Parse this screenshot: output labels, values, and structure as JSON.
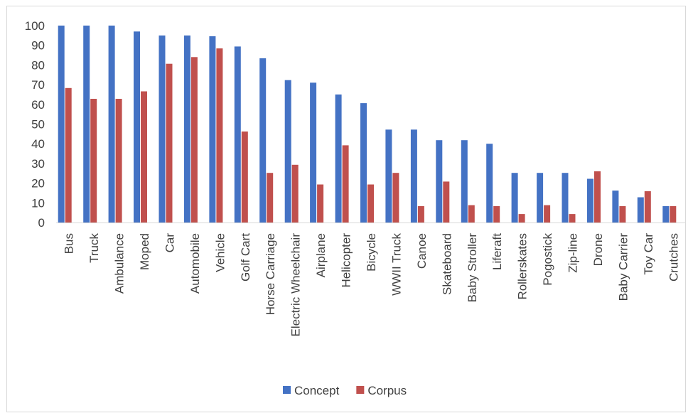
{
  "chart_data": {
    "type": "bar",
    "title": "",
    "xlabel": "",
    "ylabel": "",
    "ylim": [
      0,
      100
    ],
    "yticks": [
      0,
      10,
      20,
      30,
      40,
      50,
      60,
      70,
      80,
      90,
      100
    ],
    "grid": false,
    "legend_position": "bottom",
    "categories": [
      "Bus",
      "Truck",
      "Ambulance",
      "Moped",
      "Car",
      "Automobile",
      "Vehicle",
      "Golf Cart",
      "Horse Carriage",
      "Electric Wheelchair",
      "Airplane",
      "Helicopter",
      "Bicycle",
      "WWII Truck",
      "Canoe",
      "Skateboard",
      "Baby Stroller",
      "Liferaft",
      "Rollerskates",
      "Pogostick",
      "Zip-line",
      "Drone",
      "Baby Carrier",
      "Toy Car",
      "Crutches"
    ],
    "series": [
      {
        "name": "Concept",
        "color": "#4472c4",
        "values": [
          100,
          100,
          100,
          97,
          95,
          95,
          94.6,
          89.4,
          83.4,
          72.3,
          71,
          65,
          60.6,
          47.2,
          47.2,
          41.8,
          41.8,
          40,
          25.2,
          25.2,
          25.2,
          22.2,
          16.2,
          12.8,
          8.3
        ]
      },
      {
        "name": "Corpus",
        "color": "#c0504d",
        "values": [
          68.3,
          62.8,
          62.8,
          66.6,
          80.6,
          84,
          88.4,
          46.2,
          25.2,
          29.3,
          19.3,
          39.2,
          19.3,
          25.2,
          8.3,
          20.8,
          8.8,
          8.3,
          4.3,
          8.8,
          4.3,
          26,
          8.3,
          15.9,
          8.3
        ]
      }
    ]
  }
}
